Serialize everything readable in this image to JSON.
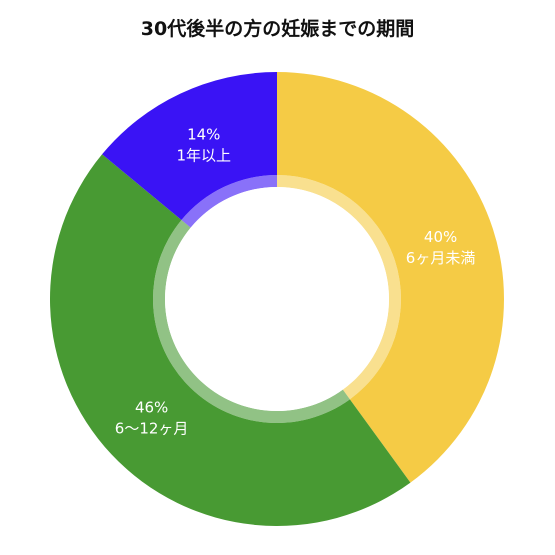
{
  "chart_data": {
    "type": "pie",
    "title": "30代後半の方の妊娠までの期間",
    "slices": [
      {
        "label": "6ヶ月未満",
        "value": 40,
        "percent_label": "40%",
        "color": "#F5CB45"
      },
      {
        "label": "6〜12ヶ月",
        "value": 46,
        "percent_label": "46%",
        "color": "#489A33"
      },
      {
        "label": "1年以上",
        "value": 14,
        "percent_label": "14%",
        "color": "#3A13F5"
      }
    ],
    "legend": "none",
    "style": "donut",
    "start": "top, clockwise"
  }
}
